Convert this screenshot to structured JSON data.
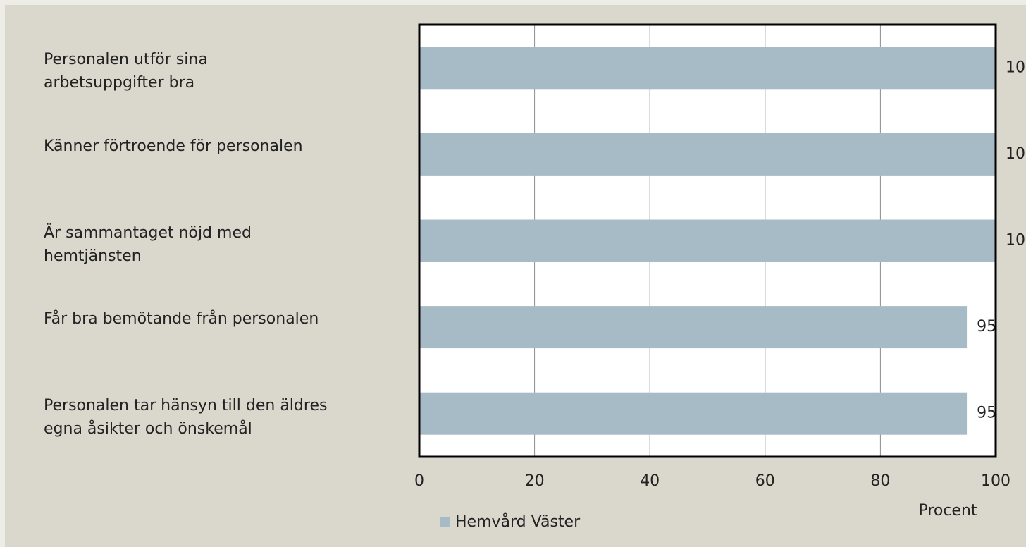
{
  "chart_data": {
    "type": "bar",
    "orientation": "horizontal",
    "categories": [
      "Personalen utför sina\narbetsuppgifter bra",
      "Känner förtroende för personalen",
      "Är sammantaget nöjd med\nhemtjänsten",
      "Får bra bemötande från personalen",
      "Personalen tar hänsyn till den äldres\negna åsikter och önskemål"
    ],
    "series": [
      {
        "name": "Hemvård Väster",
        "color": "#a7bbc7",
        "values": [
          100,
          100,
          100,
          95,
          95
        ]
      }
    ],
    "xlim": [
      0,
      100
    ],
    "xticks": [
      0,
      20,
      40,
      60,
      80,
      100
    ],
    "xlabel": "Procent",
    "grid": true,
    "legend": "bottom-left"
  }
}
